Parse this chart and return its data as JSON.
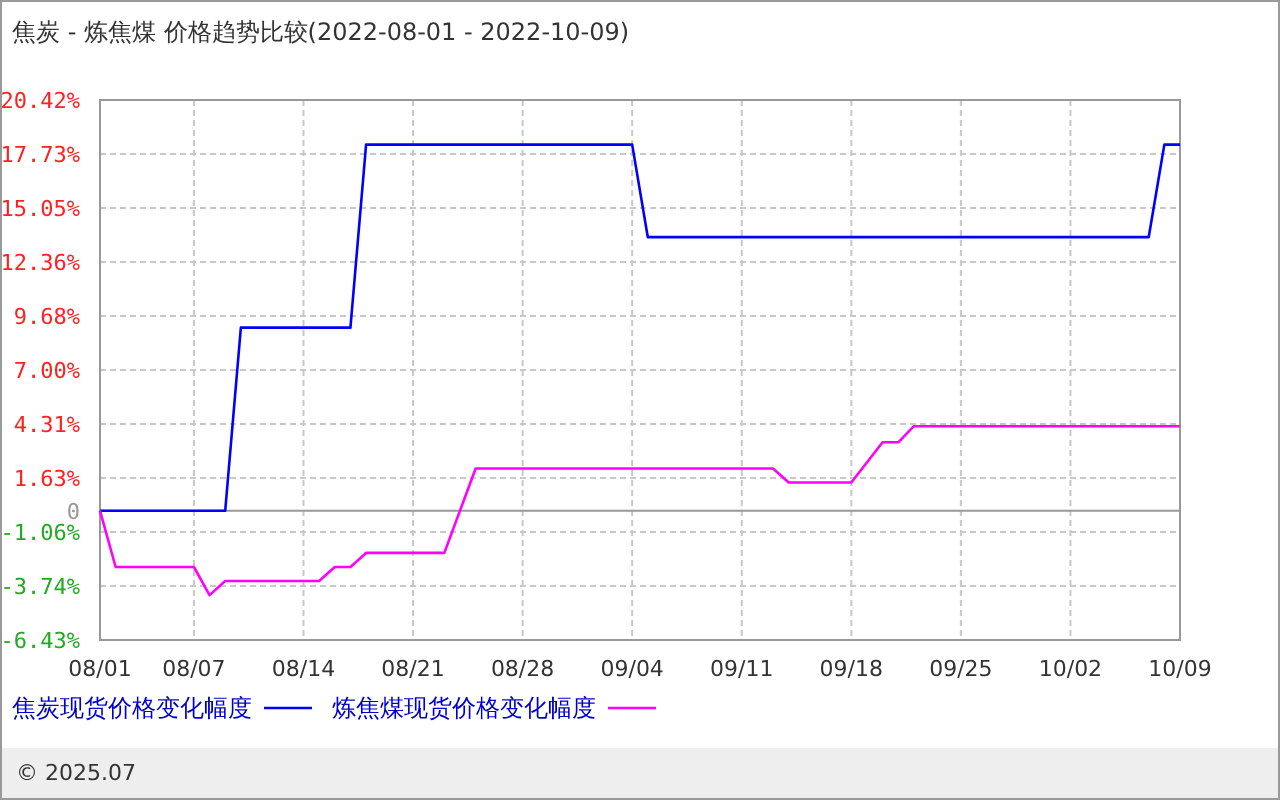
{
  "chart_data": {
    "type": "line",
    "title": "焦炭 - 炼焦煤 价格趋势比较(2022-08-01 - 2022-10-09)",
    "series": [
      {
        "name": "焦炭现货价格变化幅度",
        "color": "#0000ff",
        "x": [
          "2022-08-01",
          "2022-08-09",
          "2022-08-10",
          "2022-08-17",
          "2022-08-18",
          "2022-09-04",
          "2022-09-05",
          "2022-10-07",
          "2022-10-08",
          "2022-10-09"
        ],
        "values": [
          0,
          0,
          9.1,
          9.1,
          18.2,
          18.2,
          13.6,
          13.6,
          18.2,
          18.2
        ]
      },
      {
        "name": "炼焦煤现货价格变化幅度",
        "color": "#ff00ff",
        "x": [
          "2022-08-01",
          "2022-08-02",
          "2022-08-07",
          "2022-08-08",
          "2022-08-09",
          "2022-08-15",
          "2022-08-16",
          "2022-08-17",
          "2022-08-18",
          "2022-08-23",
          "2022-08-25",
          "2022-09-13",
          "2022-09-14",
          "2022-09-18",
          "2022-09-20",
          "2022-09-21",
          "2022-09-22",
          "2022-10-09"
        ],
        "values": [
          0,
          -2.8,
          -2.8,
          -4.2,
          -3.5,
          -3.5,
          -2.8,
          -2.8,
          -2.1,
          -2.1,
          2.1,
          2.1,
          1.4,
          1.4,
          3.4,
          3.4,
          4.2,
          4.2
        ]
      }
    ],
    "xlim": [
      "2022-08-01",
      "2022-10-09"
    ],
    "xticks": [
      {
        "value": "2022-08-01",
        "label": "08/01"
      },
      {
        "value": "2022-08-07",
        "label": "08/07"
      },
      {
        "value": "2022-08-14",
        "label": "08/14"
      },
      {
        "value": "2022-08-21",
        "label": "08/21"
      },
      {
        "value": "2022-08-28",
        "label": "08/28"
      },
      {
        "value": "2022-09-04",
        "label": "09/04"
      },
      {
        "value": "2022-09-11",
        "label": "09/11"
      },
      {
        "value": "2022-09-18",
        "label": "09/18"
      },
      {
        "value": "2022-09-25",
        "label": "09/25"
      },
      {
        "value": "2022-10-02",
        "label": "10/02"
      },
      {
        "value": "2022-10-09",
        "label": "10/09"
      }
    ],
    "ylim": [
      -6.43,
      20.42
    ],
    "yticks": [
      {
        "value": 20.42,
        "label": "20.42%"
      },
      {
        "value": 17.73,
        "label": "17.73%"
      },
      {
        "value": 15.05,
        "label": "15.05%"
      },
      {
        "value": 12.36,
        "label": "12.36%"
      },
      {
        "value": 9.68,
        "label": "9.68%"
      },
      {
        "value": 7.0,
        "label": "7.00%"
      },
      {
        "value": 4.31,
        "label": "4.31%"
      },
      {
        "value": 1.63,
        "label": "1.63%"
      },
      0,
      {
        "value": -1.06,
        "label": "-1.06%"
      },
      {
        "value": -3.74,
        "label": "-3.74%"
      },
      {
        "value": -6.43,
        "label": "-6.43%"
      }
    ],
    "grid": true,
    "legend": "bottom",
    "line_style": "solid",
    "marker": "none",
    "annotations": [
      "© 2025.07"
    ]
  }
}
